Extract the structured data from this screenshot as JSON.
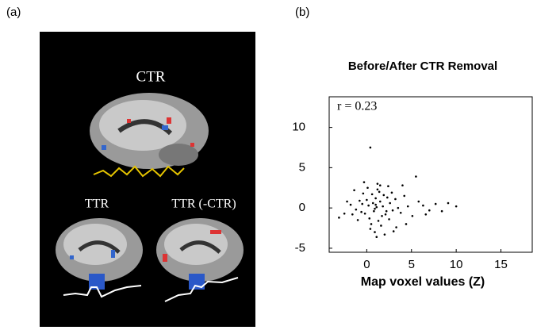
{
  "panel_a": {
    "label": "(a)",
    "top_label": "CTR",
    "left_label": "TTR",
    "right_label": "TTR (-CTR)"
  },
  "chart_data": {
    "type": "scatter",
    "panel_label": "(b)",
    "title": "Before/After CTR Removal",
    "x_label": "Map voxel values (Z)",
    "annotation": "r = 0.23",
    "color": "#000000",
    "xlim": [
      -4.2,
      18.5
    ],
    "ylim": [
      -5.5,
      13.8
    ],
    "xticks": [
      0,
      5,
      10,
      15
    ],
    "yticks": [
      -5,
      0,
      5,
      10
    ],
    "x": [
      0.2,
      0.8,
      1.5,
      -0.5,
      2.1,
      1.0,
      0.3,
      1.8,
      -1.2,
      2.6,
      0.6,
      1.3,
      -0.2,
      2.9,
      1.1,
      0.0,
      1.7,
      -0.8,
      2.3,
      0.9,
      1.4,
      -1.6,
      3.2,
      0.5,
      1.9,
      -0.4,
      2.5,
      1.2,
      0.7,
      -1.0,
      3.5,
      1.6,
      0.1,
      2.2,
      -1.8,
      0.4,
      1.0,
      2.8,
      -0.6,
      1.5,
      3.8,
      4.2,
      4.6,
      5.1,
      5.8,
      6.3,
      7.0,
      7.7,
      8.4,
      9.1,
      10.0,
      -2.5,
      -3.1,
      -2.2,
      0.4,
      4.0,
      5.5,
      1.2,
      3.0,
      6.6,
      2.0,
      -0.3,
      0.9,
      2.4,
      1.1,
      -1.4,
      4.4,
      3.3
    ],
    "values": [
      0.3,
      -0.4,
      0.8,
      0.5,
      -0.8,
      1.2,
      -1.3,
      0.2,
      -0.2,
      0.6,
      1.7,
      -1.6,
      -0.7,
      -0.3,
      0.1,
      1.0,
      -1.0,
      0.9,
      1.3,
      -0.1,
      2.0,
      -0.8,
      1.1,
      -2.0,
      1.6,
      1.8,
      -1.4,
      2.3,
      0.6,
      -1.5,
      0.0,
      -2.2,
      2.5,
      -0.4,
      0.4,
      -2.6,
      0.4,
      1.9,
      -0.5,
      2.8,
      -0.6,
      1.5,
      0.2,
      -1.0,
      0.8,
      0.3,
      -0.3,
      0.5,
      -0.4,
      0.6,
      0.2,
      -0.7,
      -1.2,
      0.8,
      7.5,
      2.8,
      3.9,
      3.0,
      -2.9,
      -0.8,
      -3.3,
      3.2,
      -3.0,
      2.7,
      -3.6,
      2.2,
      -2.0,
      -2.4
    ]
  }
}
